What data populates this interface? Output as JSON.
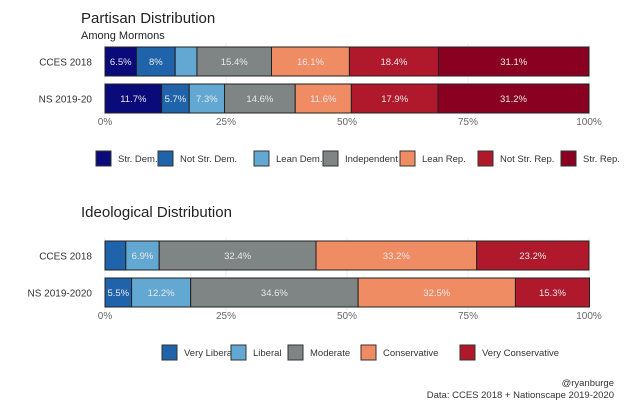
{
  "chart_data": [
    {
      "type": "bar",
      "orientation": "horizontal-stacked",
      "title": "Partisan Distribution",
      "subtitle": "Among Mormons",
      "categories": [
        "CCES 2018",
        "NS 2019-20"
      ],
      "xlim": [
        0,
        100
      ],
      "xticks": [
        "0%",
        "25%",
        "50%",
        "75%",
        "100%"
      ],
      "xtick_values": [
        0,
        25,
        50,
        75,
        100
      ],
      "legend_position": "bottom",
      "series": [
        {
          "name": "Str. Dem.",
          "color": "#0a0a7a",
          "values": [
            6.5,
            11.7
          ],
          "labels": [
            "6.5%",
            "11.7%"
          ]
        },
        {
          "name": "Not Str. Dem.",
          "color": "#1f63aa",
          "values": [
            8.0,
            5.7
          ],
          "labels": [
            "8%",
            "5.7%"
          ]
        },
        {
          "name": "Lean Dem.",
          "color": "#63a8d2",
          "values": [
            4.5,
            7.3
          ],
          "labels": [
            "",
            "7.3%"
          ]
        },
        {
          "name": "Independent",
          "color": "#7e8584",
          "values": [
            15.4,
            14.6
          ],
          "labels": [
            "15.4%",
            "14.6%"
          ]
        },
        {
          "name": "Lean Rep.",
          "color": "#f08c64",
          "values": [
            16.1,
            11.6
          ],
          "labels": [
            "16.1%",
            "11.6%"
          ]
        },
        {
          "name": "Not Str. Rep.",
          "color": "#b0182b",
          "values": [
            18.4,
            17.9
          ],
          "labels": [
            "18.4%",
            "17.9%"
          ]
        },
        {
          "name": "Str. Rep.",
          "color": "#8a0020",
          "values": [
            31.1,
            31.2
          ],
          "labels": [
            "31.1%",
            "31.2%"
          ]
        }
      ]
    },
    {
      "type": "bar",
      "orientation": "horizontal-stacked",
      "title": "Ideological Distribution",
      "subtitle": "",
      "categories": [
        "CCES 2018",
        "NS 2019-2020"
      ],
      "xlim": [
        0,
        100
      ],
      "xticks": [
        "0%",
        "25%",
        "50%",
        "75%",
        "100%"
      ],
      "xtick_values": [
        0,
        25,
        50,
        75,
        100
      ],
      "legend_position": "bottom",
      "series": [
        {
          "name": "Very Liberal",
          "color": "#1f63aa",
          "values": [
            4.3,
            5.5
          ],
          "labels": [
            "",
            "5.5%"
          ]
        },
        {
          "name": "Liberal",
          "color": "#63a8d2",
          "values": [
            6.9,
            12.2
          ],
          "labels": [
            "6.9%",
            "12.2%"
          ]
        },
        {
          "name": "Moderate",
          "color": "#7e8584",
          "values": [
            32.4,
            34.6
          ],
          "labels": [
            "32.4%",
            "34.6%"
          ]
        },
        {
          "name": "Conservative",
          "color": "#f08c64",
          "values": [
            33.2,
            32.5
          ],
          "labels": [
            "33.2%",
            "32.5%"
          ]
        },
        {
          "name": "Very Conservative",
          "color": "#b0182b",
          "values": [
            23.2,
            15.3
          ],
          "labels": [
            "23.2%",
            "15.3%"
          ]
        }
      ]
    }
  ],
  "caption": {
    "line1": "@ryanburge",
    "line2": "Data: CCES 2018 + Nationscape 2019-2020"
  }
}
